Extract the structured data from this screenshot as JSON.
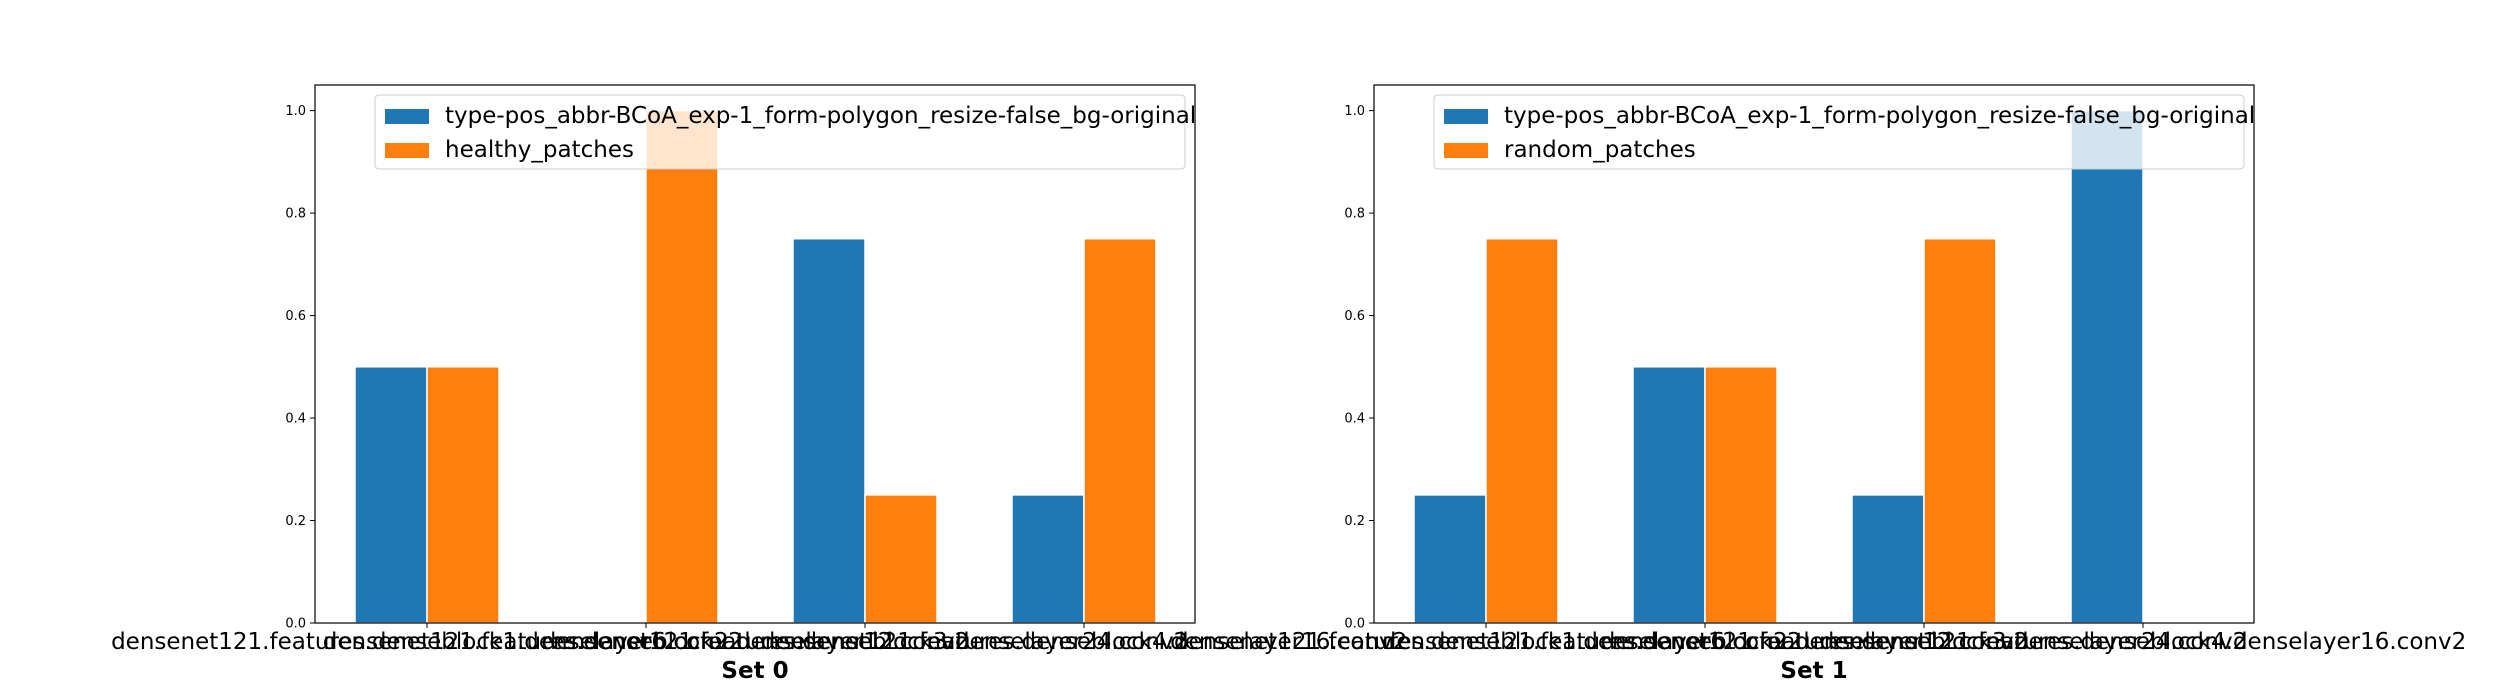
{
  "chart_data": [
    {
      "type": "bar",
      "xlabel": "Set 0",
      "ylabel": "",
      "ylim": [
        0,
        1.05
      ],
      "yticks": [
        "0.0",
        "0.2",
        "0.4",
        "0.6",
        "0.8",
        "1.0"
      ],
      "categories": [
        "densenet121.features.denseblock1.denselayer6.conv2",
        "densenet121.features.denseblock2.denselayer12.conv2",
        "densenet121.features.denseblock3.denselayer24.conv2",
        "densenet121.features.denseblock4.denselayer16.conv2"
      ],
      "series": [
        {
          "name": "type-pos_abbr-BCoA_exp-1_form-polygon_resize-false_bg-original",
          "color": "#1f77b4",
          "values": [
            0.5,
            0.0,
            0.75,
            0.25
          ]
        },
        {
          "name": "healthy_patches",
          "color": "#ff7f0e",
          "values": [
            0.5,
            1.0,
            0.25,
            0.75
          ]
        }
      ],
      "legend_position": "top-right",
      "grid": false
    },
    {
      "type": "bar",
      "xlabel": "Set 1",
      "ylabel": "",
      "ylim": [
        0,
        1.05
      ],
      "yticks": [
        "0.0",
        "0.2",
        "0.4",
        "0.6",
        "0.8",
        "1.0"
      ],
      "categories": [
        "densenet121.features.denseblock1.denselayer6.conv2",
        "densenet121.features.denseblock2.denselayer12.conv2",
        "densenet121.features.denseblock3.denselayer24.conv2",
        "densenet121.features.denseblock4.denselayer16.conv2"
      ],
      "series": [
        {
          "name": "type-pos_abbr-BCoA_exp-1_form-polygon_resize-false_bg-original",
          "color": "#1f77b4",
          "values": [
            0.25,
            0.5,
            0.25,
            1.0
          ]
        },
        {
          "name": "random_patches",
          "color": "#ff7f0e",
          "values": [
            0.75,
            0.5,
            0.75,
            0.0
          ]
        }
      ],
      "legend_position": "top-right",
      "grid": false
    }
  ]
}
